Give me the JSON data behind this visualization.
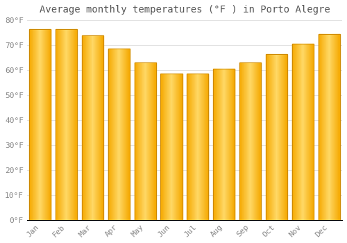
{
  "title": "Average monthly temperatures (°F ) in Porto Alegre",
  "months": [
    "Jan",
    "Feb",
    "Mar",
    "Apr",
    "May",
    "Jun",
    "Jul",
    "Aug",
    "Sep",
    "Oct",
    "Nov",
    "Dec"
  ],
  "values": [
    76.5,
    76.5,
    74.0,
    68.5,
    63.0,
    58.5,
    58.5,
    60.5,
    63.0,
    66.5,
    70.5,
    74.5
  ],
  "bar_color_left": "#F5A800",
  "bar_color_center": "#FFD966",
  "bar_color_right": "#F5A800",
  "bar_border_color": "#CC8800",
  "background_color": "#FFFFFF",
  "grid_color": "#DDDDDD",
  "ylim": [
    0,
    80
  ],
  "yticks": [
    0,
    10,
    20,
    30,
    40,
    50,
    60,
    70,
    80
  ],
  "title_fontsize": 10,
  "tick_fontsize": 8,
  "tick_label_color": "#888888",
  "title_color": "#555555"
}
